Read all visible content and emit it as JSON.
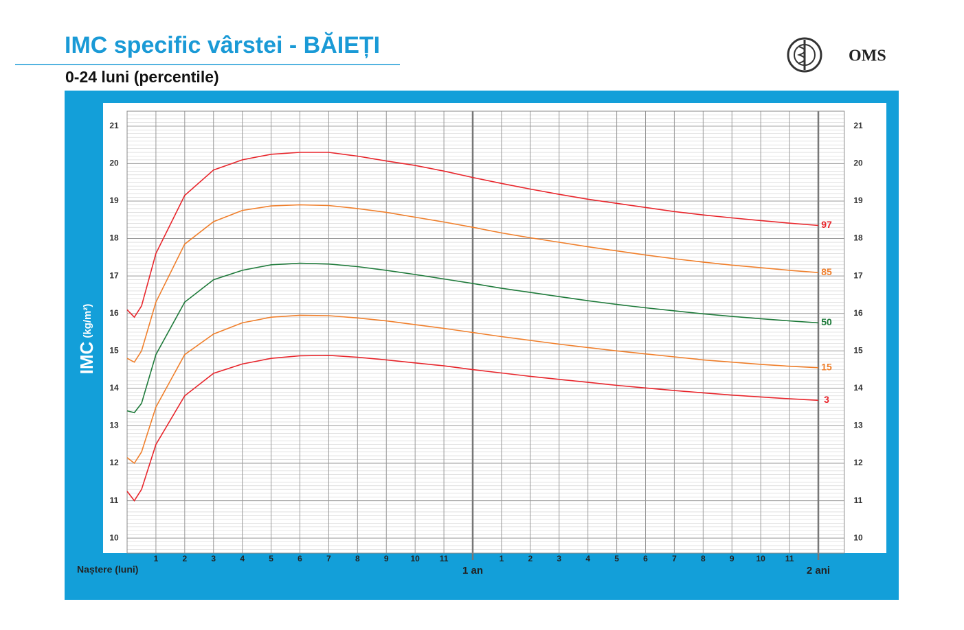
{
  "header": {
    "title": "IMC specific vârstei - BĂIEȚI",
    "subtitle": "0-24 luni (percentile)",
    "logo_text": "OMS"
  },
  "chart_data": {
    "type": "line",
    "ylabel": "IMC",
    "ylabel_unit": "(kg/m²)",
    "x": [
      0,
      0.25,
      0.5,
      1,
      2,
      3,
      4,
      5,
      6,
      7,
      8,
      9,
      10,
      11,
      12,
      13,
      14,
      15,
      16,
      17,
      18,
      19,
      20,
      21,
      22,
      23,
      24
    ],
    "series": [
      {
        "name": "97",
        "color": "#e8252b",
        "values": [
          16.1,
          15.9,
          16.2,
          17.6,
          19.15,
          19.83,
          20.1,
          20.25,
          20.3,
          20.3,
          20.2,
          20.07,
          19.95,
          19.8,
          19.63,
          19.47,
          19.32,
          19.18,
          19.05,
          18.94,
          18.83,
          18.72,
          18.63,
          18.55,
          18.48,
          18.41,
          18.35
        ]
      },
      {
        "name": "85",
        "color": "#f07f2b",
        "values": [
          14.8,
          14.7,
          15.0,
          16.3,
          17.85,
          18.45,
          18.75,
          18.87,
          18.9,
          18.88,
          18.8,
          18.7,
          18.57,
          18.44,
          18.3,
          18.15,
          18.02,
          17.9,
          17.78,
          17.67,
          17.56,
          17.46,
          17.37,
          17.29,
          17.22,
          17.15,
          17.09
        ]
      },
      {
        "name": "50",
        "color": "#1e7a3a",
        "values": [
          13.4,
          13.35,
          13.6,
          14.9,
          16.3,
          16.9,
          17.15,
          17.3,
          17.34,
          17.32,
          17.25,
          17.15,
          17.04,
          16.92,
          16.8,
          16.67,
          16.56,
          16.45,
          16.34,
          16.24,
          16.15,
          16.07,
          15.99,
          15.92,
          15.86,
          15.8,
          15.75
        ]
      },
      {
        "name": "15",
        "color": "#f07f2b",
        "values": [
          12.15,
          12.0,
          12.3,
          13.5,
          14.9,
          15.45,
          15.75,
          15.9,
          15.95,
          15.94,
          15.88,
          15.8,
          15.7,
          15.6,
          15.49,
          15.38,
          15.28,
          15.18,
          15.09,
          15.0,
          14.92,
          14.84,
          14.76,
          14.7,
          14.64,
          14.59,
          14.55
        ]
      },
      {
        "name": "3",
        "color": "#e8252b",
        "values": [
          11.25,
          11.0,
          11.3,
          12.5,
          13.8,
          14.4,
          14.65,
          14.8,
          14.87,
          14.88,
          14.83,
          14.76,
          14.68,
          14.6,
          14.5,
          14.41,
          14.32,
          14.24,
          14.16,
          14.08,
          14.01,
          13.94,
          13.88,
          13.82,
          13.77,
          13.72,
          13.68
        ]
      }
    ],
    "xlim": [
      0,
      24.9
    ],
    "xticks": [
      {
        "value": 0,
        "label": "Naștere (luni)"
      },
      1,
      2,
      3,
      4,
      5,
      6,
      7,
      8,
      9,
      10,
      11,
      {
        "value": 12,
        "label": "1 an"
      },
      {
        "value": 13,
        "label": "1"
      },
      {
        "value": 14,
        "label": "2"
      },
      {
        "value": 15,
        "label": "3"
      },
      {
        "value": 16,
        "label": "4"
      },
      {
        "value": 17,
        "label": "5"
      },
      {
        "value": 18,
        "label": "6"
      },
      {
        "value": 19,
        "label": "7"
      },
      {
        "value": 20,
        "label": "8"
      },
      {
        "value": 21,
        "label": "9"
      },
      {
        "value": 22,
        "label": "10"
      },
      {
        "value": 23,
        "label": "11"
      },
      {
        "value": 24,
        "label": "2 ani"
      }
    ],
    "ylim": [
      9.6,
      21.4
    ],
    "yticks": [
      10,
      11,
      12,
      13,
      14,
      15,
      16,
      17,
      18,
      19,
      20,
      21
    ],
    "minor_grid_step": 0.1,
    "grid": true
  }
}
